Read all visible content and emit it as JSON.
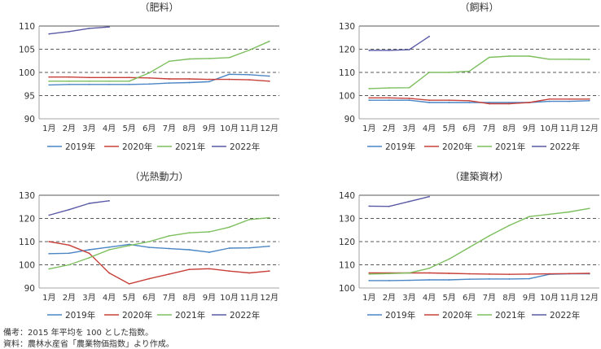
{
  "chart_data": [
    {
      "type": "line",
      "title": "（肥料）",
      "categories": [
        "1月",
        "2月",
        "3月",
        "4月",
        "5月",
        "6月",
        "7月",
        "8月",
        "9月",
        "10月",
        "11月",
        "12月"
      ],
      "ylim": [
        90,
        110
      ],
      "yticks": [
        90,
        95,
        100,
        105,
        110
      ],
      "dashed_gridlines": [
        95,
        100,
        105
      ],
      "series": [
        {
          "name": "2019年",
          "color": "#4a86c5",
          "values": [
            97.3,
            97.4,
            97.4,
            97.4,
            97.4,
            97.5,
            97.7,
            97.8,
            98.0,
            99.6,
            99.5,
            99.2
          ]
        },
        {
          "name": "2020年",
          "color": "#c8403a",
          "values": [
            99.0,
            99.0,
            98.9,
            98.9,
            98.9,
            98.8,
            98.6,
            98.6,
            98.5,
            98.5,
            98.4,
            98.1
          ]
        },
        {
          "name": "2021年",
          "color": "#7dbf5e",
          "values": [
            98.1,
            98.1,
            98.1,
            98.1,
            98.1,
            99.9,
            102.4,
            102.9,
            103.0,
            103.2,
            104.8,
            106.7
          ]
        },
        {
          "name": "2022年",
          "color": "#5a5aa6",
          "values": [
            108.3,
            108.8,
            109.5,
            109.8,
            null,
            null,
            null,
            null,
            null,
            null,
            null,
            null
          ]
        }
      ]
    },
    {
      "type": "line",
      "title": "（飼料）",
      "categories": [
        "1月",
        "2月",
        "3月",
        "4月",
        "5月",
        "6月",
        "7月",
        "8月",
        "9月",
        "10月",
        "11月",
        "12月"
      ],
      "ylim": [
        90,
        130
      ],
      "yticks": [
        90,
        100,
        110,
        120,
        130
      ],
      "dashed_gridlines": [
        100,
        110,
        120
      ],
      "series": [
        {
          "name": "2019年",
          "color": "#4a86c5",
          "values": [
            98.0,
            98.0,
            98.0,
            97.0,
            97.0,
            97.0,
            97.0,
            97.0,
            97.0,
            97.5,
            97.5,
            97.8
          ]
        },
        {
          "name": "2020年",
          "color": "#c8403a",
          "values": [
            99.0,
            99.0,
            98.8,
            98.0,
            98.0,
            97.8,
            96.5,
            96.5,
            97.0,
            98.5,
            98.5,
            98.5
          ]
        },
        {
          "name": "2021年",
          "color": "#7dbf5e",
          "values": [
            103.0,
            103.3,
            103.4,
            110.0,
            110.0,
            110.5,
            116.5,
            117.0,
            117.0,
            115.7,
            115.7,
            115.6
          ]
        },
        {
          "name": "2022年",
          "color": "#5a5aa6",
          "values": [
            119.5,
            119.5,
            119.8,
            125.5,
            null,
            null,
            null,
            null,
            null,
            null,
            null,
            null
          ]
        }
      ]
    },
    {
      "type": "line",
      "title": "（光熱動力）",
      "categories": [
        "1月",
        "2月",
        "3月",
        "4月",
        "5月",
        "6月",
        "7月",
        "8月",
        "9月",
        "10月",
        "11月",
        "12月"
      ],
      "ylim": [
        90,
        130
      ],
      "yticks": [
        90,
        100,
        110,
        120,
        130
      ],
      "dashed_gridlines": [
        100,
        110,
        120
      ],
      "series": [
        {
          "name": "2019年",
          "color": "#4a86c5",
          "values": [
            104.8,
            105.0,
            106.5,
            107.6,
            108.8,
            107.5,
            107.0,
            106.5,
            105.4,
            107.2,
            107.3,
            108.0
          ]
        },
        {
          "name": "2020年",
          "color": "#c8403a",
          "values": [
            110.0,
            108.5,
            105.0,
            96.5,
            91.8,
            94.0,
            96.0,
            98.0,
            98.3,
            97.3,
            96.5,
            97.3
          ]
        },
        {
          "name": "2021年",
          "color": "#7dbf5e",
          "values": [
            98.2,
            100.0,
            103.0,
            106.5,
            108.3,
            110.0,
            112.5,
            113.8,
            114.2,
            116.2,
            119.5,
            120.3
          ]
        },
        {
          "name": "2022年",
          "color": "#5a5aa6",
          "values": [
            121.4,
            123.8,
            126.5,
            127.6,
            null,
            null,
            null,
            null,
            null,
            null,
            null,
            null
          ]
        }
      ]
    },
    {
      "type": "line",
      "title": "（建築資材）",
      "categories": [
        "1月",
        "2月",
        "3月",
        "4月",
        "5月",
        "6月",
        "7月",
        "8月",
        "9月",
        "10月",
        "11月",
        "12月"
      ],
      "ylim": [
        100,
        140
      ],
      "yticks": [
        100,
        110,
        120,
        130,
        140
      ],
      "dashed_gridlines": [
        110,
        120,
        130
      ],
      "series": [
        {
          "name": "2019年",
          "color": "#4a86c5",
          "values": [
            103.2,
            103.2,
            103.3,
            103.5,
            103.5,
            103.8,
            103.9,
            103.9,
            104.0,
            105.9,
            106.1,
            106.1
          ]
        },
        {
          "name": "2020年",
          "color": "#c8403a",
          "values": [
            106.5,
            106.5,
            106.5,
            106.5,
            106.3,
            106.1,
            106.0,
            105.9,
            106.0,
            106.1,
            106.2,
            106.3
          ]
        },
        {
          "name": "2021年",
          "color": "#7dbf5e",
          "values": [
            106.0,
            106.2,
            106.5,
            108.5,
            112.5,
            117.5,
            122.5,
            127.0,
            130.8,
            131.8,
            132.8,
            134.3
          ]
        },
        {
          "name": "2022年",
          "color": "#5a5aa6",
          "values": [
            135.3,
            135.2,
            137.3,
            139.4,
            null,
            null,
            null,
            null,
            null,
            null,
            null,
            null
          ]
        }
      ]
    }
  ],
  "notes": {
    "remark": "備考：2015 年平均を 100 とした指数。",
    "source": "資料：農林水産省「農業物価指数」より作成。"
  }
}
